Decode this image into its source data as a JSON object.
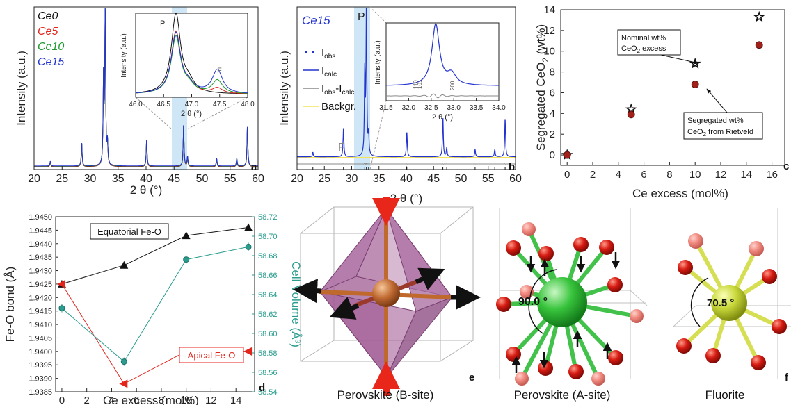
{
  "chart_data": [
    {
      "panel": "a",
      "type": "line",
      "xlabel": "2 θ (°)",
      "ylabel": "Intensity (a.u.)",
      "xlim": [
        20,
        60
      ],
      "xticks": [
        "20",
        "25",
        "30",
        "35",
        "40",
        "45",
        "50",
        "55",
        "60"
      ],
      "legend": [
        "Ce0",
        "Ce5",
        "Ce10",
        "Ce15"
      ],
      "series_colors": [
        "#111111",
        "#e3241b",
        "#1f9a2e",
        "#2233d0"
      ],
      "peaks": [
        {
          "x": 22.9,
          "h": 0.03
        },
        {
          "x": 28.5,
          "h": 0.15
        },
        {
          "x": 32.4,
          "h": 0.55
        },
        {
          "x": 32.7,
          "h": 1.0
        },
        {
          "x": 33.1,
          "h": 0.14
        },
        {
          "x": 40.1,
          "h": 0.17
        },
        {
          "x": 46.7,
          "h": 0.27
        },
        {
          "x": 47.4,
          "h": 0.06
        },
        {
          "x": 52.6,
          "h": 0.05
        },
        {
          "x": 56.2,
          "h": 0.05
        },
        {
          "x": 58.1,
          "h": 0.26
        }
      ],
      "highlight_range": [
        45.9,
        47.9
      ],
      "inset": {
        "xlabel": "2 θ (°)",
        "ylabel": "Intensity (a.u.)",
        "xlim": [
          46.0,
          48.0
        ],
        "xticks": [
          "46.0",
          "46.5",
          "47.0",
          "47.5",
          "48.0"
        ],
        "annotations": [
          "P",
          "F"
        ],
        "p_heights": [
          1.0,
          0.78,
          0.72,
          0.76
        ],
        "f_heights": [
          0.0,
          0.07,
          0.17,
          0.3
        ]
      },
      "panel_label": "a"
    },
    {
      "panel": "b",
      "type": "line",
      "title": "Ce15",
      "xlabel": "2 θ (°)",
      "ylabel": "Intensity (a.u.)",
      "xlim": [
        20,
        60
      ],
      "xticks": [
        "20",
        "25",
        "30",
        "35",
        "40",
        "45",
        "50",
        "55",
        "60"
      ],
      "legend": [
        {
          "main": "I",
          "sub": "obs",
          "color": "#2233d0",
          "style": "dots"
        },
        {
          "main": "I",
          "sub": "calc",
          "color": "#2233d0",
          "style": "line"
        },
        {
          "main": "I",
          "sub": "obs",
          "tail": "-I",
          "sub2": "calc",
          "color": "#888888",
          "style": "line"
        },
        {
          "main": "Backgr.",
          "color": "#f2e35a",
          "style": "line"
        }
      ],
      "annotations": [
        "P",
        "F"
      ],
      "highlight_range": [
        31.0,
        34.0
      ],
      "inset": {
        "xlabel": "2 θ (°)",
        "ylabel": "Intensity (a.u.)",
        "xlim": [
          31.5,
          34.0
        ],
        "xticks": [
          "31.5",
          "32.0",
          "32.5",
          "33.0",
          "33.5",
          "34.0"
        ],
        "reflections": [
          "110",
          "101",
          "200"
        ]
      },
      "panel_label": "b"
    },
    {
      "panel": "c",
      "type": "scatter",
      "xlabel": "Ce excess (mol%)",
      "ylabel": "Segregated CeO2 (wt%)",
      "xlim": [
        -0.5,
        17
      ],
      "ylim": [
        -1,
        14
      ],
      "xticks": [
        0,
        2,
        4,
        6,
        8,
        10,
        12,
        14,
        16
      ],
      "yticks": [
        0,
        2,
        4,
        6,
        8,
        10,
        12,
        14
      ],
      "series": [
        {
          "name": "Nominal wt% CeO2 excess",
          "marker": "star",
          "x": [
            0,
            5,
            10,
            15
          ],
          "y": [
            0.0,
            4.4,
            8.8,
            13.3
          ]
        },
        {
          "name": "Segregated wt% CeO2 from Rietveld",
          "marker": "circle",
          "x": [
            0,
            5,
            10,
            15
          ],
          "y": [
            0.0,
            3.9,
            6.8,
            10.6
          ]
        }
      ],
      "annotations": [
        {
          "lines": [
            "Nominal wt%",
            "CeO2 excess"
          ]
        },
        {
          "lines": [
            "Segregated wt%",
            "CeO2 from Rietveld"
          ]
        }
      ],
      "panel_label": "c"
    },
    {
      "panel": "d",
      "type": "line",
      "xlabel": "Ce excess (mol%)",
      "ylabel": "Fe-O bond (Å)",
      "ylabel_right": "Cell Volume (Å³)",
      "xlim": [
        -0.5,
        15.5
      ],
      "ylim": [
        1.9385,
        1.945
      ],
      "ylim_right": [
        58.54,
        58.72
      ],
      "xticks": [
        0,
        2,
        4,
        6,
        8,
        10,
        12,
        14
      ],
      "yticks": [
        "1.9385",
        "1.9390",
        "1.9395",
        "1.9400",
        "1.9405",
        "1.9410",
        "1.9415",
        "1.9420",
        "1.9425",
        "1.9430",
        "1.9435",
        "1.9440",
        "1.9445",
        "1.9450"
      ],
      "yticks_right": [
        "58.54",
        "58.56",
        "58.58",
        "58.60",
        "58.62",
        "58.64",
        "58.66",
        "58.68",
        "58.70",
        "58.72"
      ],
      "series": [
        {
          "name": "Equatorial Fe-O",
          "color": "#111111",
          "marker": "triangle-up",
          "x": [
            0,
            5,
            10,
            15
          ],
          "y": [
            1.9425,
            1.9432,
            1.9443,
            1.9446
          ]
        },
        {
          "name": "Apical Fe-O",
          "color": "#e3241b",
          "marker": "triangle-left",
          "x": [
            0,
            5,
            10,
            15
          ],
          "y": [
            1.9425,
            1.9388,
            1.94,
            1.94
          ]
        },
        {
          "name": "Cell Volume",
          "color": "#2a9d8f",
          "marker": "circle",
          "axis": "right",
          "x": [
            0,
            5,
            10,
            15
          ],
          "y": [
            58.626,
            58.571,
            58.676,
            58.689
          ]
        }
      ],
      "panel_label": "d"
    }
  ],
  "structures": [
    {
      "caption": "Perovskite (B-site)",
      "panel_label": "e"
    },
    {
      "caption": "Perovskite (A-site)",
      "angle_label": "90.0 °"
    },
    {
      "caption": "Fluorite",
      "angle_label": "70.5 °",
      "panel_label": "f"
    }
  ]
}
